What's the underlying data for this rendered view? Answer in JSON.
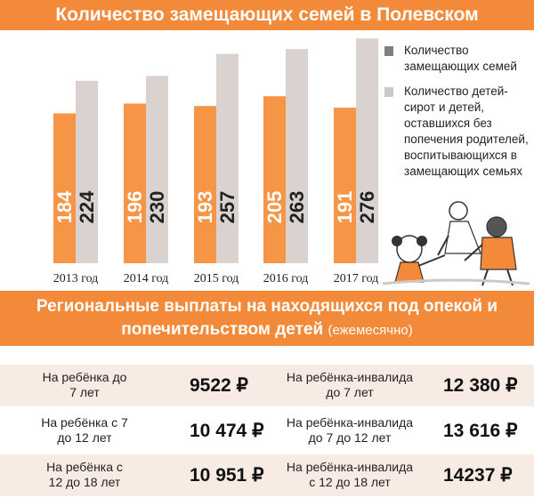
{
  "header": {
    "title": "Количество замещающих семей в Полевском"
  },
  "legend": {
    "families": "Количество замещающих семей",
    "children": "Количество детей-сирот и детей, оставшихся без попечения родителей, воспитывающихся в замещающих семьях"
  },
  "colors": {
    "accent": "#f28a3a",
    "families_bar": "#f79546",
    "children_bar": "#d9d2cf",
    "legend_families": "#808080",
    "legend_children": "#cfc9c6"
  },
  "chart_data": {
    "type": "bar",
    "categories": [
      "2013 год",
      "2014 год",
      "2015 год",
      "2016 год",
      "2017 год"
    ],
    "series": [
      {
        "name": "Количество замещающих семей",
        "values": [
          184,
          196,
          193,
          205,
          191
        ]
      },
      {
        "name": "Количество детей-сирот и детей, оставшихся без попечения родителей, воспитывающихся в замещающих семьях",
        "values": [
          224,
          230,
          257,
          263,
          276
        ]
      }
    ],
    "title": "Количество замещающих семей в Полевском",
    "grid": false,
    "legend_position": "right"
  },
  "payments": {
    "title": "Региональные выплаты на находящихся под опекой и попечительством детей",
    "subtitle": "(ежемесячно)",
    "rows": [
      {
        "label1": "На ребёнка до 7 лет",
        "value1": "9522 ₽",
        "label2": "На ребёнка-инвалида до 7 лет",
        "value2": "12 380 ₽"
      },
      {
        "label1": "На ребёнка с 7 до 12 лет",
        "value1": "10 474 ₽",
        "label2": "На ребёнка-инвалида до 7 до 12 лет",
        "value2": "13 616 ₽"
      },
      {
        "label1": "На ребёнка с 12 до 18 лет",
        "value1": "10 951 ₽",
        "label2": "На ребёнка-инвалида с 12 до 18 лет",
        "value2": "14237 ₽"
      }
    ]
  }
}
